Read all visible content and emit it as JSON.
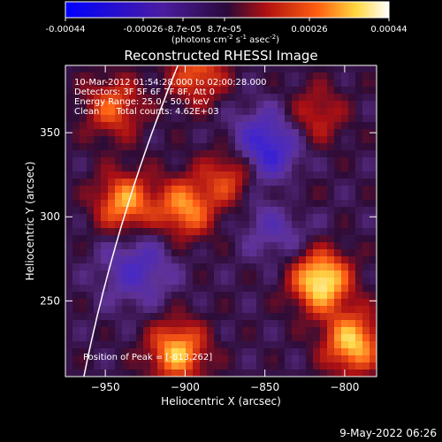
{
  "colorbar": {
    "ticks": [
      "-0.00044",
      "-0.00026",
      "-8.7e-05",
      "8.7e-05",
      "0.00026",
      "0.00044"
    ],
    "label": "(photons cm",
    "label_exp1": "-2",
    "label_mid": " s",
    "label_exp2": "-1",
    "label_end": " asec",
    "label_exp3": "-2",
    "label_close": ")"
  },
  "chart_data": {
    "type": "heatmap",
    "title": "Reconstructed RHESSI Image",
    "xlabel": "Heliocentric X (arcsec)",
    "ylabel": "Heliocentric Y (arcsec)",
    "xlim": [
      -975,
      -780
    ],
    "ylim": [
      205,
      390
    ],
    "x_ticks": [
      -950,
      -900,
      -850,
      -800
    ],
    "y_ticks": [
      250,
      300,
      350
    ],
    "x_tick_labels": [
      "−950",
      "−900",
      "−850",
      "−800"
    ],
    "y_tick_labels": [
      "250",
      "300",
      "350"
    ],
    "color_range": [
      -0.00044,
      0.00044
    ],
    "colormap": "blue-purple-red-yellow-white",
    "limb_color": "#ffffff",
    "bright_sources": [
      {
        "x": -815,
        "y": 262,
        "intensity": 1.0
      },
      {
        "x": -795,
        "y": 225,
        "intensity": 0.85
      },
      {
        "x": -905,
        "y": 220,
        "intensity": 0.8
      },
      {
        "x": -938,
        "y": 308,
        "intensity": 0.75
      },
      {
        "x": -900,
        "y": 305,
        "intensity": 0.7
      },
      {
        "x": -870,
        "y": 325,
        "intensity": 0.6
      },
      {
        "x": -945,
        "y": 365,
        "intensity": 0.55
      },
      {
        "x": -892,
        "y": 385,
        "intensity": 0.55
      },
      {
        "x": -818,
        "y": 360,
        "intensity": 0.4
      },
      {
        "x": -835,
        "y": 310,
        "intensity": 0.45
      }
    ],
    "dark_regions": [
      {
        "x": -850,
        "y": 340,
        "intensity": -0.7
      },
      {
        "x": -840,
        "y": 300,
        "intensity": -0.5
      },
      {
        "x": -930,
        "y": 270,
        "intensity": -0.45
      }
    ],
    "annotations": [
      "10-Mar-2012 01:54:28.000 to 02:00:28.000",
      "Detectors: 3F 5F 6F 7F 8F, Att 0",
      "Energy Range: 25.0 - 50.0 keV",
      "Clean      Total counts: 4.62E+03"
    ],
    "peak_label": "Position of Peak = [-813,262]"
  },
  "footer": {
    "date": "9-May-2022 06:26"
  }
}
